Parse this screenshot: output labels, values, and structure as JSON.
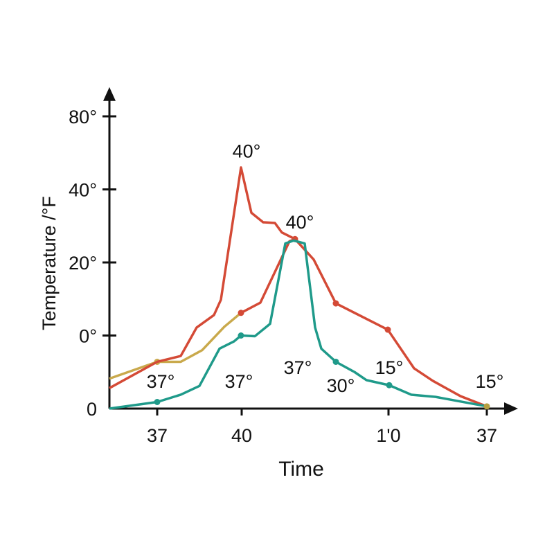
{
  "chart_data": {
    "type": "line",
    "title": "",
    "xlabel": "Time",
    "ylabel": "Temperature /°F",
    "xlim": [
      0,
      59
    ],
    "ylim": [
      0,
      4.4
    ],
    "grid": false,
    "x_ticks": [
      {
        "value": 6.9,
        "label": "37"
      },
      {
        "value": 19.1,
        "label": "40"
      },
      {
        "value": 40.3,
        "label": "1'0"
      },
      {
        "value": 54.5,
        "label": "37"
      }
    ],
    "y_ticks": [
      {
        "value": 0,
        "label": "0"
      },
      {
        "value": 1,
        "label": "0°"
      },
      {
        "value": 2,
        "label": "20°"
      },
      {
        "value": 3,
        "label": "40°"
      },
      {
        "value": 4,
        "label": "80°"
      }
    ],
    "series": [
      {
        "color": "#c9a94c",
        "x": [
          0,
          6.9,
          10.3,
          13.4,
          16.6,
          19.0
        ],
        "y": [
          0.41,
          0.64,
          0.64,
          0.8,
          1.12,
          1.31
        ],
        "markers": [
          6.9
        ]
      },
      {
        "color": "#d44a36",
        "x": [
          0,
          6.9,
          10.3,
          12.6,
          15.1,
          16.1,
          19.0,
          20.5,
          22.2,
          23.9,
          24.9,
          26.8,
          29.5,
          32.7,
          40.2,
          44.0,
          46.7,
          50.7,
          54.5
        ],
        "y": [
          0.28,
          0.64,
          0.72,
          1.11,
          1.28,
          1.49,
          3.3,
          2.68,
          2.55,
          2.54,
          2.41,
          2.32,
          2.04,
          1.44,
          1.08,
          0.55,
          0.38,
          0.17,
          0.03
        ],
        "markers": [
          26.8,
          32.7,
          40.2
        ]
      },
      {
        "color": "#d44a36",
        "x": [
          19.0,
          21.8,
          26.0,
          26.8
        ],
        "y": [
          1.31,
          1.45,
          2.29,
          2.32
        ],
        "markers": [
          19.0
        ]
      },
      {
        "color": "#1f9a8a",
        "x": [
          0,
          6.9,
          10.3,
          13.0,
          15.9,
          18.0,
          19.0,
          21.0,
          23.2,
          25.4,
          26.6,
          28.2,
          29.7,
          30.6,
          32.7,
          35.4,
          37.1,
          40.4,
          43.6,
          47.1,
          54.5
        ],
        "y": [
          0,
          0.09,
          0.19,
          0.31,
          0.82,
          0.92,
          1.0,
          0.99,
          1.16,
          2.26,
          2.3,
          2.26,
          1.11,
          0.82,
          0.64,
          0.5,
          0.39,
          0.32,
          0.19,
          0.16,
          0.03
        ],
        "markers": [
          6.9,
          19.0,
          32.7,
          40.4
        ]
      },
      {
        "color": "#b5a040",
        "x": [
          54.5
        ],
        "y": [
          0.03
        ],
        "markers": [
          54.5
        ]
      }
    ],
    "annotations": [
      {
        "text": "40°",
        "x": 19.8,
        "y": 3.53
      },
      {
        "text": "40°",
        "x": 27.5,
        "y": 2.56
      },
      {
        "text": "37°",
        "x": 7.4,
        "y": 0.38
      },
      {
        "text": "37°",
        "x": 18.7,
        "y": 0.38
      },
      {
        "text": "37°",
        "x": 27.2,
        "y": 0.57
      },
      {
        "text": "30°",
        "x": 33.4,
        "y": 0.32
      },
      {
        "text": "15°",
        "x": 40.4,
        "y": 0.57
      },
      {
        "text": "15°",
        "x": 54.9,
        "y": 0.38
      }
    ]
  }
}
